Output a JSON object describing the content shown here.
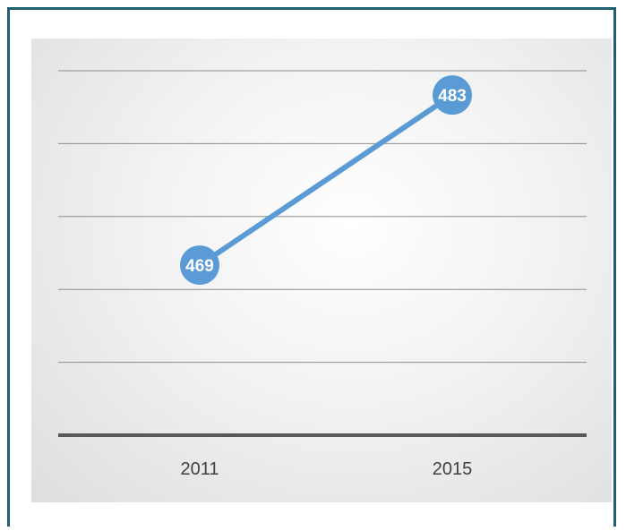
{
  "chart_data": {
    "type": "line",
    "categories": [
      "2011",
      "2015"
    ],
    "series": [
      {
        "values": [
          469,
          483
        ]
      }
    ],
    "data_labels": [
      "469",
      "483"
    ],
    "ylim": [
      455,
      485
    ],
    "grid": true,
    "colors": {
      "line": "#5b9bd5",
      "marker": "#5b9bd5",
      "label_text": "#ffffff",
      "gridline": "#8c8c8c",
      "baseline": "#595959",
      "tick_text": "#404040",
      "frame": "#1f5f6e"
    }
  }
}
